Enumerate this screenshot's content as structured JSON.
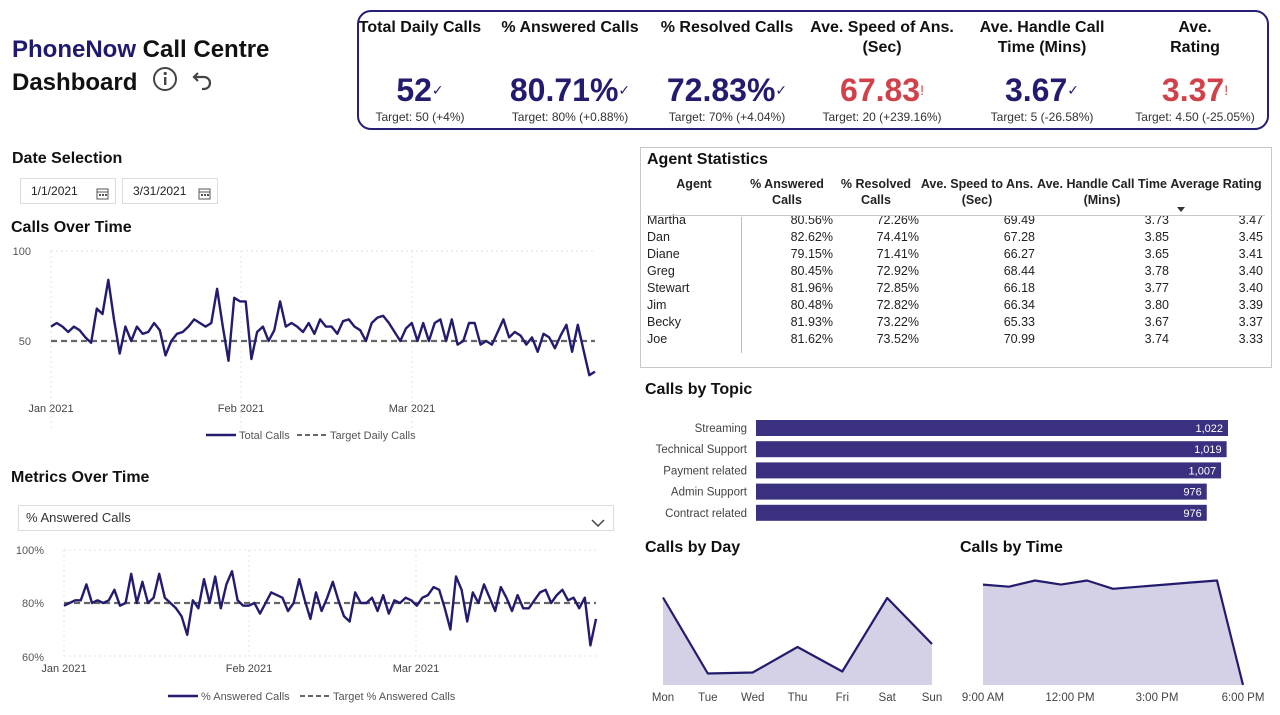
{
  "header": {
    "brand": "PhoneNow",
    "title_rest": "Call Centre",
    "title_line2": "Dashboard"
  },
  "kpis": [
    {
      "label": "Total Daily Calls",
      "value": "52",
      "mark": "✓",
      "status": "good",
      "target": "Target: 50 (+4%)"
    },
    {
      "label": "% Answered Calls",
      "value": "80.71%",
      "mark": "✓",
      "status": "good",
      "target": "Target: 80% (+0.88%)"
    },
    {
      "label": "% Resolved Calls",
      "value": "72.83%",
      "mark": "✓",
      "status": "good",
      "target": "Target: 70% (+4.04%)"
    },
    {
      "label": "Ave. Speed of Ans. (Sec)",
      "value": "67.83",
      "mark": "!",
      "status": "bad",
      "target": "Target: 20 (+239.16%)"
    },
    {
      "label": "Ave. Handle Call Time (Mins)",
      "value": "3.67",
      "mark": "✓",
      "status": "good",
      "target": "Target: 5 (-26.58%)"
    },
    {
      "label": "Ave. Rating",
      "value": "3.37",
      "mark": "!",
      "status": "bad",
      "target": "Target: 4.50 (-25.05%)"
    }
  ],
  "date_selection": {
    "title": "Date Selection",
    "start": "1/1/2021",
    "end": "3/31/2021"
  },
  "metrics_dropdown": {
    "title": "Metrics Over Time",
    "selected": "% Answered Calls"
  },
  "agent_stats": {
    "title": "Agent Statistics",
    "columns": [
      "Agent",
      "% Answered Calls",
      "% Resolved Calls",
      "Ave. Speed to Ans. (Sec)",
      "Ave. Handle Call Time (Mins)",
      "Average Rating"
    ],
    "rows": [
      [
        "Martha",
        "80.56%",
        "72.26%",
        "69.49",
        "3.73",
        "3.47"
      ],
      [
        "Dan",
        "82.62%",
        "74.41%",
        "67.28",
        "3.85",
        "3.45"
      ],
      [
        "Diane",
        "79.15%",
        "71.41%",
        "66.27",
        "3.65",
        "3.41"
      ],
      [
        "Greg",
        "80.45%",
        "72.92%",
        "68.44",
        "3.78",
        "3.40"
      ],
      [
        "Stewart",
        "81.96%",
        "72.85%",
        "66.18",
        "3.77",
        "3.40"
      ],
      [
        "Jim",
        "80.48%",
        "72.82%",
        "66.34",
        "3.80",
        "3.39"
      ],
      [
        "Becky",
        "81.93%",
        "73.22%",
        "65.33",
        "3.67",
        "3.37"
      ],
      [
        "Joe",
        "81.62%",
        "73.52%",
        "70.99",
        "3.74",
        "3.33"
      ]
    ]
  },
  "colors": {
    "navy": "#231c6e",
    "bar": "#39307f",
    "area_fill": "#d4d1e6",
    "bad": "#d1414a",
    "target_line": "#666666"
  },
  "chart_data": [
    {
      "id": "calls_over_time",
      "type": "line",
      "title": "Calls Over Time",
      "x_ticks": [
        "Jan 2021",
        "Feb 2021",
        "Mar 2021"
      ],
      "y_ticks": [
        50,
        100
      ],
      "ylim": [
        0,
        100
      ],
      "legend": [
        "Total Calls",
        "Target Daily Calls"
      ],
      "target": 50,
      "values": [
        58,
        60,
        58,
        55,
        58,
        56,
        52,
        49,
        68,
        65,
        84,
        62,
        43,
        58,
        50,
        58,
        54,
        55,
        60,
        56,
        42,
        50,
        54,
        55,
        58,
        62,
        60,
        58,
        60,
        79,
        58,
        39,
        74,
        72,
        72,
        40,
        55,
        58,
        50,
        56,
        72,
        58,
        60,
        58,
        55,
        60,
        54,
        62,
        58,
        58,
        54,
        61,
        62,
        58,
        56,
        50,
        60,
        63,
        64,
        60,
        55,
        50,
        57,
        60,
        50,
        60,
        50,
        60,
        62,
        50,
        62,
        48,
        50,
        60,
        60,
        48,
        50,
        48,
        55,
        62,
        52,
        55,
        53,
        48,
        52,
        44,
        54,
        52,
        46,
        53,
        59,
        44,
        59,
        45,
        31,
        33
      ]
    },
    {
      "id": "metrics_over_time",
      "type": "line",
      "title": "Metrics Over Time",
      "x_ticks": [
        "Jan 2021",
        "Feb 2021",
        "Mar 2021"
      ],
      "y_ticks": [
        "60%",
        "80%",
        "100%"
      ],
      "ylim": [
        60,
        100
      ],
      "legend": [
        "% Answered Calls",
        "Target % Answered Calls"
      ],
      "target": 80,
      "values": [
        79,
        80,
        81,
        81,
        87,
        80,
        81,
        80,
        81,
        85,
        79,
        80,
        91,
        80,
        88,
        80,
        82,
        91,
        82,
        80,
        78,
        75,
        68,
        81,
        78,
        89,
        80,
        90,
        78,
        87,
        92,
        81,
        79,
        79,
        80,
        76,
        80,
        84,
        83,
        82,
        77,
        80,
        89,
        81,
        74,
        84,
        77,
        82,
        88,
        81,
        75,
        73,
        84,
        80,
        80,
        82,
        77,
        83,
        76,
        81,
        80,
        82,
        81,
        79,
        82,
        83,
        86,
        85,
        78,
        70,
        90,
        85,
        73,
        84,
        80,
        87,
        82,
        77,
        86,
        82,
        77,
        83,
        78,
        78,
        81,
        84,
        85,
        80,
        83,
        85,
        81,
        82,
        78,
        82,
        64,
        74
      ]
    },
    {
      "id": "calls_by_topic",
      "type": "bar",
      "title": "Calls by Topic",
      "categories": [
        "Streaming",
        "Technical Support",
        "Payment related",
        "Admin Support",
        "Contract related"
      ],
      "values": [
        1022,
        1019,
        1007,
        976,
        976
      ],
      "labels": [
        "1,022",
        "1,019",
        "1,007",
        "976",
        "976"
      ],
      "xlim": [
        0,
        1022
      ]
    },
    {
      "id": "calls_by_day",
      "type": "area",
      "title": "Calls by Day",
      "categories": [
        "Mon",
        "Tue",
        "Wed",
        "Thu",
        "Fri",
        "Sat",
        "Sun"
      ],
      "values": [
        775,
        623,
        625,
        676,
        627,
        774,
        682
      ]
    },
    {
      "id": "calls_by_time",
      "type": "area",
      "title": "Calls by Time",
      "x_ticks": [
        "9:00 AM",
        "12:00 PM",
        "3:00 PM",
        "6:00 PM"
      ],
      "values": [
        488,
        487,
        490,
        488,
        490,
        486,
        487,
        488,
        489,
        490,
        465
      ]
    }
  ]
}
